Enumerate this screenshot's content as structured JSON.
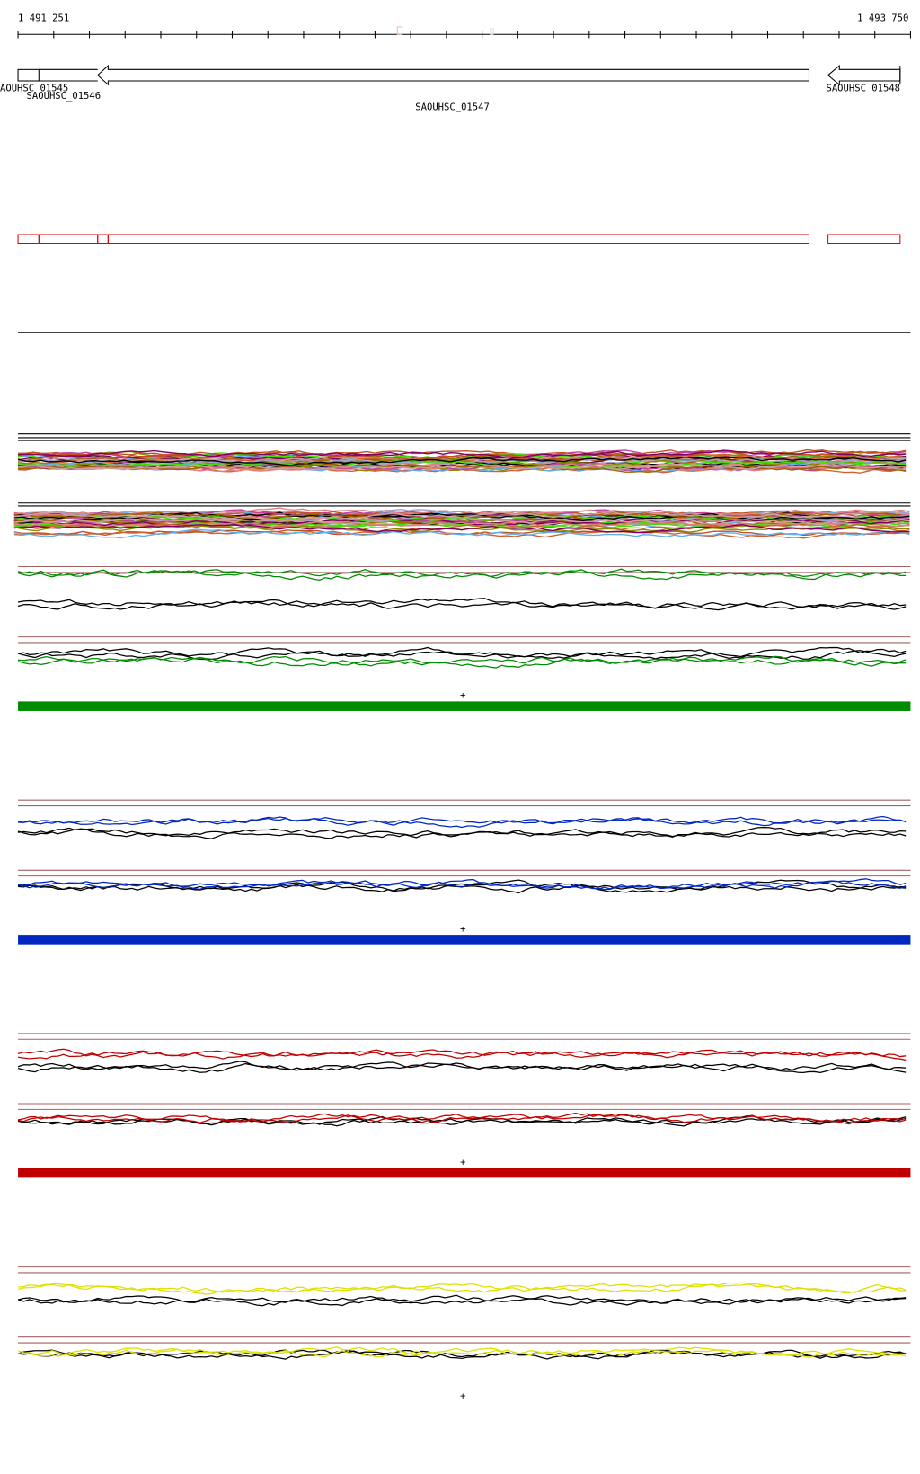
{
  "ruler": {
    "start_label": "1 491 251",
    "end_label": "1 493 750"
  },
  "genes": [
    {
      "id": "g1545",
      "label": "AOUHSC_01545",
      "strand": "none"
    },
    {
      "id": "g1546",
      "label": "SAOUHSC_01546",
      "strand": "minus"
    },
    {
      "id": "g1547",
      "label": "SAOUHSC_01547",
      "strand": "minus"
    },
    {
      "id": "g1548",
      "label": "SAOUHSC_01548",
      "strand": "minus"
    }
  ],
  "colors": {
    "gene_outline": "#000000",
    "feature_box": "#e00000",
    "reference_line": "#a06060",
    "green": "#008c00",
    "blue": "#0028c0",
    "red": "#c00000",
    "yellow": "#e0e000"
  },
  "marker_symbol": "+",
  "condition_panels": [
    {
      "color_key": "green",
      "has_bar": true
    },
    {
      "color_key": "blue",
      "has_bar": true
    },
    {
      "color_key": "red",
      "has_bar": true
    },
    {
      "color_key": "yellow",
      "has_bar": false
    }
  ]
}
